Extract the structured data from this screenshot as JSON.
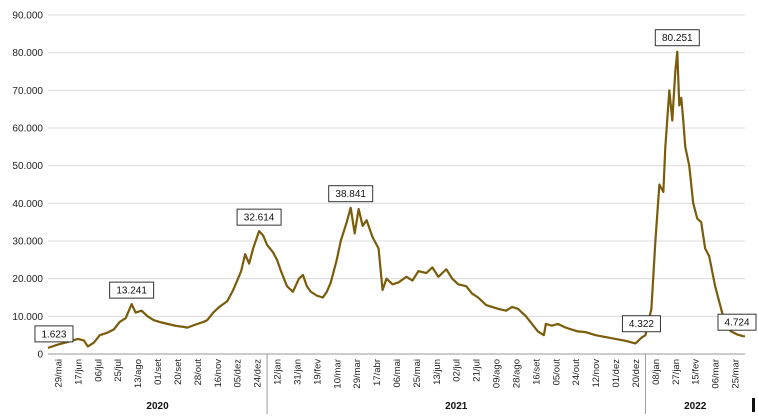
{
  "chart_data": {
    "type": "line",
    "title": "",
    "xlabel": "",
    "ylabel": "",
    "ylim": [
      0,
      90000
    ],
    "grid": true,
    "legend": "none",
    "line_color": "#7a5c0b",
    "y_ticks": [
      "0",
      "10.000",
      "20.000",
      "30.000",
      "40.000",
      "50.000",
      "60.000",
      "70.000",
      "80.000",
      "90.000"
    ],
    "x_tick_labels": [
      "29/mai",
      "17/jun",
      "06/jul",
      "25/jul",
      "13/ago",
      "01/set",
      "20/set",
      "28/out",
      "16/nov",
      "05/dez",
      "24/dez",
      "12/jan",
      "31/jan",
      "19/fev",
      "10/mar",
      "29/mar",
      "17/abr",
      "06/mai",
      "25/mai",
      "13/jun",
      "02/jul",
      "21/jul",
      "09/ago",
      "28/ago",
      "16/set",
      "05/out",
      "24/out",
      "12/nov",
      "01/dez",
      "20/dez",
      "08/jan",
      "27/jan",
      "15/fev",
      "06/mar",
      "25/mar"
    ],
    "years": [
      {
        "label": "2020",
        "from": 0,
        "to": 11
      },
      {
        "label": "2021",
        "from": 11,
        "to": 30
      },
      {
        "label": "2022",
        "from": 30,
        "to": 35
      }
    ],
    "annotations": [
      {
        "label": "1.623",
        "t": 0.3,
        "value": 1623
      },
      {
        "label": "13.241",
        "t": 4.2,
        "value": 13241
      },
      {
        "label": "32.614",
        "t": 10.6,
        "value": 32614
      },
      {
        "label": "38.841",
        "t": 15.2,
        "value": 38841
      },
      {
        "label": "4.322",
        "t": 29.8,
        "value": 4322
      },
      {
        "label": "80.251",
        "t": 31.6,
        "value": 80251
      },
      {
        "label": "4.724",
        "t": 34.8,
        "value": 4724
      }
    ],
    "series": [
      {
        "points": [
          [
            0,
            1623
          ],
          [
            0.5,
            2500
          ],
          [
            1,
            3200
          ],
          [
            1.5,
            4000
          ],
          [
            1.8,
            3600
          ],
          [
            2.0,
            2000
          ],
          [
            2.3,
            3000
          ],
          [
            2.6,
            5000
          ],
          [
            3.0,
            5700
          ],
          [
            3.3,
            6500
          ],
          [
            3.6,
            8500
          ],
          [
            3.9,
            9500
          ],
          [
            4.2,
            13241
          ],
          [
            4.4,
            11000
          ],
          [
            4.7,
            11500
          ],
          [
            5.0,
            10000
          ],
          [
            5.3,
            9000
          ],
          [
            5.6,
            8500
          ],
          [
            6.0,
            8000
          ],
          [
            6.4,
            7500
          ],
          [
            6.8,
            7200
          ],
          [
            7.0,
            7000
          ],
          [
            7.4,
            7800
          ],
          [
            7.8,
            8500
          ],
          [
            8.0,
            9000
          ],
          [
            8.3,
            11000
          ],
          [
            8.6,
            12500
          ],
          [
            9.0,
            14000
          ],
          [
            9.3,
            17000
          ],
          [
            9.7,
            22000
          ],
          [
            9.9,
            26500
          ],
          [
            10.1,
            24000
          ],
          [
            10.3,
            28000
          ],
          [
            10.6,
            32614
          ],
          [
            10.8,
            31500
          ],
          [
            11.0,
            29000
          ],
          [
            11.3,
            27000
          ],
          [
            11.5,
            25000
          ],
          [
            11.7,
            22000
          ],
          [
            12.0,
            18000
          ],
          [
            12.3,
            16500
          ],
          [
            12.6,
            20000
          ],
          [
            12.8,
            21000
          ],
          [
            13.0,
            18000
          ],
          [
            13.2,
            16500
          ],
          [
            13.5,
            15500
          ],
          [
            13.8,
            15000
          ],
          [
            14.0,
            16500
          ],
          [
            14.2,
            19000
          ],
          [
            14.5,
            25000
          ],
          [
            14.7,
            30000
          ],
          [
            15.0,
            35000
          ],
          [
            15.2,
            38841
          ],
          [
            15.4,
            32000
          ],
          [
            15.6,
            38500
          ],
          [
            15.8,
            34000
          ],
          [
            16.0,
            35500
          ],
          [
            16.3,
            31000
          ],
          [
            16.6,
            28000
          ],
          [
            16.8,
            17000
          ],
          [
            17.0,
            20000
          ],
          [
            17.3,
            18500
          ],
          [
            17.6,
            19000
          ],
          [
            18.0,
            20500
          ],
          [
            18.3,
            19500
          ],
          [
            18.6,
            22000
          ],
          [
            19.0,
            21500
          ],
          [
            19.3,
            23000
          ],
          [
            19.6,
            20500
          ],
          [
            20.0,
            22500
          ],
          [
            20.3,
            20000
          ],
          [
            20.6,
            18500
          ],
          [
            21.0,
            18000
          ],
          [
            21.3,
            16000
          ],
          [
            21.6,
            15000
          ],
          [
            22.0,
            13000
          ],
          [
            22.3,
            12500
          ],
          [
            22.6,
            12000
          ],
          [
            23.0,
            11500
          ],
          [
            23.3,
            12500
          ],
          [
            23.6,
            12000
          ],
          [
            24.0,
            10000
          ],
          [
            24.3,
            8000
          ],
          [
            24.6,
            6000
          ],
          [
            24.9,
            5000
          ],
          [
            25.0,
            8000
          ],
          [
            25.3,
            7500
          ],
          [
            25.6,
            8000
          ],
          [
            26.0,
            7000
          ],
          [
            26.3,
            6500
          ],
          [
            26.6,
            6000
          ],
          [
            27.0,
            5800
          ],
          [
            27.5,
            5000
          ],
          [
            28.0,
            4500
          ],
          [
            28.5,
            4000
          ],
          [
            29.0,
            3500
          ],
          [
            29.5,
            2800
          ],
          [
            29.8,
            4322
          ],
          [
            30.0,
            5000
          ],
          [
            30.3,
            12000
          ],
          [
            30.5,
            30000
          ],
          [
            30.7,
            45000
          ],
          [
            30.9,
            43000
          ],
          [
            31.0,
            55000
          ],
          [
            31.2,
            70000
          ],
          [
            31.35,
            62000
          ],
          [
            31.5,
            75000
          ],
          [
            31.6,
            80251
          ],
          [
            31.7,
            66000
          ],
          [
            31.8,
            68000
          ],
          [
            31.9,
            62000
          ],
          [
            32.0,
            55000
          ],
          [
            32.2,
            50000
          ],
          [
            32.4,
            40000
          ],
          [
            32.6,
            36000
          ],
          [
            32.8,
            35000
          ],
          [
            33.0,
            28000
          ],
          [
            33.2,
            26000
          ],
          [
            33.5,
            18000
          ],
          [
            33.8,
            12000
          ],
          [
            34.0,
            8000
          ],
          [
            34.3,
            6000
          ],
          [
            34.6,
            5200
          ],
          [
            34.9,
            4724
          ],
          [
            35.0,
            4700
          ]
        ]
      }
    ]
  }
}
